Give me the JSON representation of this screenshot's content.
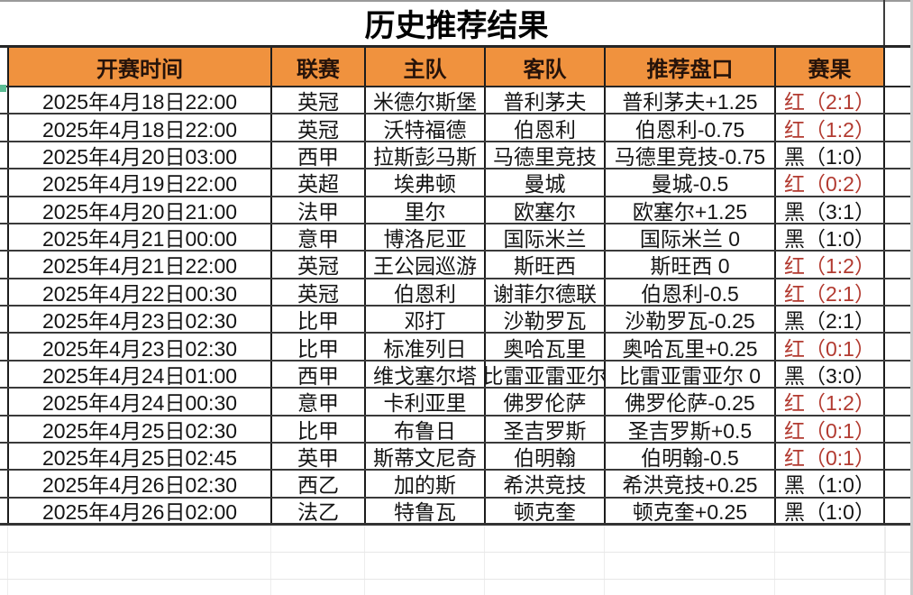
{
  "title": "历史推荐结果",
  "columns": [
    "开赛时间",
    "联赛",
    "主队",
    "客队",
    "推荐盘口",
    "赛果"
  ],
  "rows": [
    {
      "time": "2025年4月18日22:00",
      "league": "英冠",
      "home": "米德尔斯堡",
      "away": "普利茅夫",
      "handicap": "普利茅夫+1.25",
      "result": "红（2:1）"
    },
    {
      "time": "2025年4月18日22:00",
      "league": "英冠",
      "home": "沃特福德",
      "away": "伯恩利",
      "handicap": "伯恩利-0.75",
      "result": "红（1:2）"
    },
    {
      "time": "2025年4月20日03:00",
      "league": "西甲",
      "home": "拉斯彭马斯",
      "away": "马德里竞技",
      "handicap": "马德里竞技-0.75",
      "result": "黑（1:0）"
    },
    {
      "time": "2025年4月19日22:00",
      "league": "英超",
      "home": "埃弗顿",
      "away": "曼城",
      "handicap": "曼城-0.5",
      "result": "红（0:2）"
    },
    {
      "time": "2025年4月20日21:00",
      "league": "法甲",
      "home": "里尔",
      "away": "欧塞尔",
      "handicap": "欧塞尔+1.25",
      "result": "黑（3:1）"
    },
    {
      "time": "2025年4月21日00:00",
      "league": "意甲",
      "home": "博洛尼亚",
      "away": "国际米兰",
      "handicap": "国际米兰 0",
      "result": "黑（1:0）"
    },
    {
      "time": "2025年4月21日22:00",
      "league": "英冠",
      "home": "王公园巡游",
      "away": "斯旺西",
      "handicap": "斯旺西 0",
      "result": "红（1:2）"
    },
    {
      "time": "2025年4月22日00:30",
      "league": "英冠",
      "home": "伯恩利",
      "away": "谢菲尔德联",
      "handicap": "伯恩利-0.5",
      "result": "红（2:1）"
    },
    {
      "time": "2025年4月23日02:30",
      "league": "比甲",
      "home": "邓打",
      "away": "沙勒罗瓦",
      "handicap": "沙勒罗瓦-0.25",
      "result": "黑（2:1）"
    },
    {
      "time": "2025年4月23日02:30",
      "league": "比甲",
      "home": "标准列日",
      "away": "奥哈瓦里",
      "handicap": "奥哈瓦里+0.25",
      "result": "红（0:1）"
    },
    {
      "time": "2025年4月24日01:00",
      "league": "西甲",
      "home": "维戈塞尔塔",
      "away": "比雷亚雷亚尔",
      "handicap": "比雷亚雷亚尔 0",
      "result": "黑（3:0）"
    },
    {
      "time": "2025年4月24日00:30",
      "league": "意甲",
      "home": "卡利亚里",
      "away": "佛罗伦萨",
      "handicap": "佛罗伦萨-0.25",
      "result": "红（1:2）"
    },
    {
      "time": "2025年4月25日02:30",
      "league": "比甲",
      "home": "布鲁日",
      "away": "圣吉罗斯",
      "handicap": "圣吉罗斯+0.5",
      "result": "红（0:1）"
    },
    {
      "time": "2025年4月25日02:45",
      "league": "英甲",
      "home": "斯蒂文尼奇",
      "away": "伯明翰",
      "handicap": "伯明翰-0.5",
      "result": "红（0:1）"
    },
    {
      "time": "2025年4月26日02:30",
      "league": "西乙",
      "home": "加的斯",
      "away": "希洪竞技",
      "handicap": "希洪竞技+0.25",
      "result": "黑（1:0）"
    },
    {
      "time": "2025年4月26日02:00",
      "league": "法乙",
      "home": "特鲁瓦",
      "away": "顿克奎",
      "handicap": "顿克奎+0.25",
      "result": "黑（1:0）"
    }
  ],
  "colors": {
    "header_bg": "#f0923e",
    "result_red": "#b23a30",
    "result_black": "#151515",
    "green_marker": "#5cbd94"
  }
}
